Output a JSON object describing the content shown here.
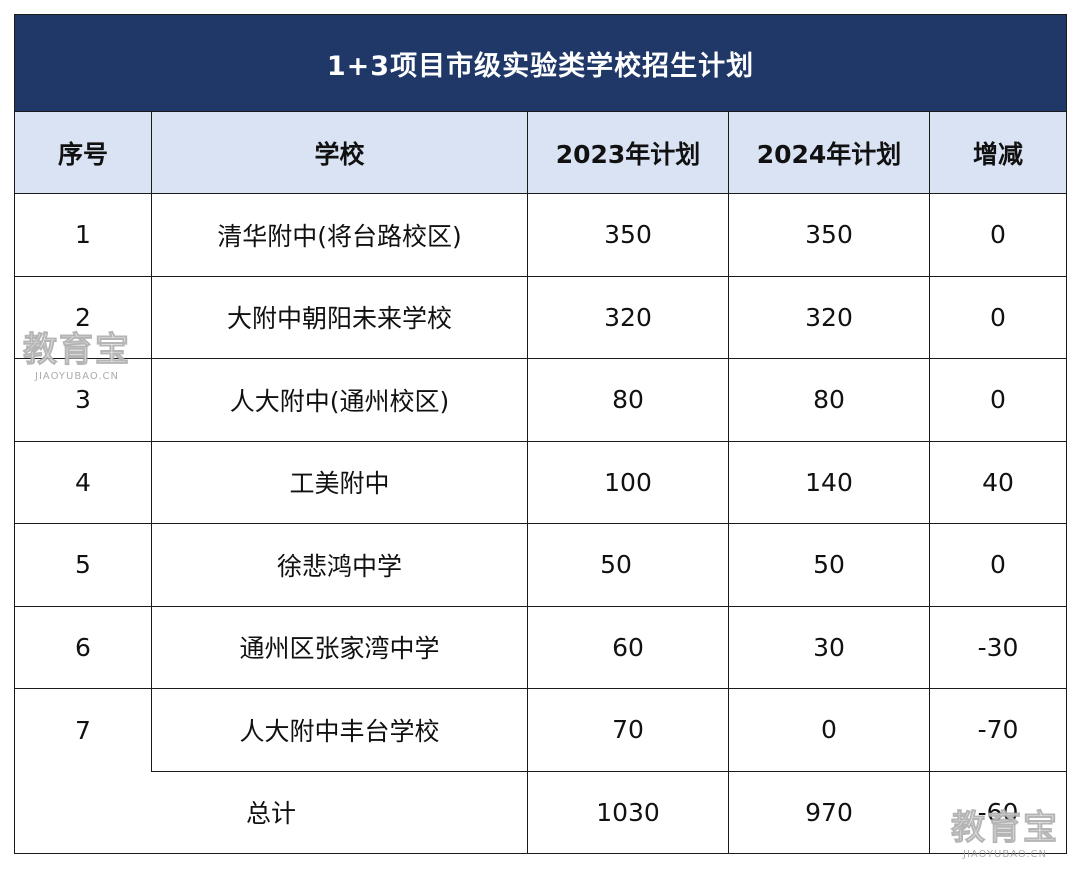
{
  "title": "1+3项目市级实验类学校招生计划",
  "headers": [
    "序号",
    "学校",
    "2023年计划",
    "2024年计划",
    "增减"
  ],
  "rows": [
    {
      "no": "1",
      "school": "清华附中(将台路校区)",
      "plan2023": "350",
      "plan2024": "350",
      "change": "0"
    },
    {
      "no": "2",
      "school": "大附中朝阳未来学校",
      "plan2023": "320",
      "plan2024": "320",
      "change": "0"
    },
    {
      "no": "3",
      "school": "人大附中(通州校区)",
      "plan2023": "80",
      "plan2024": "80",
      "change": "0"
    },
    {
      "no": "4",
      "school": "工美附中",
      "plan2023": "100",
      "plan2024": "140",
      "change": "40"
    },
    {
      "no": "5",
      "school": "徐悲鸿中学",
      "plan2023": "50",
      "plan2024": "50",
      "change": "0"
    },
    {
      "no": "6",
      "school": "通州区张家湾中学",
      "plan2023": "60",
      "plan2024": "30",
      "change": "-30"
    },
    {
      "no": "7",
      "school": "人大附中丰台学校",
      "plan2023": "70",
      "plan2024": "0",
      "change": "-70"
    }
  ],
  "total": {
    "label": "总计",
    "plan2023": "1030",
    "plan2024": "970",
    "change": "-60"
  },
  "watermark": {
    "cn": "教育宝",
    "en": "JIAOYUBAO.CN"
  },
  "colors": {
    "title_bg": "#1f3868",
    "header_bg": "#dae3f3",
    "border": "#1a1a1a"
  }
}
